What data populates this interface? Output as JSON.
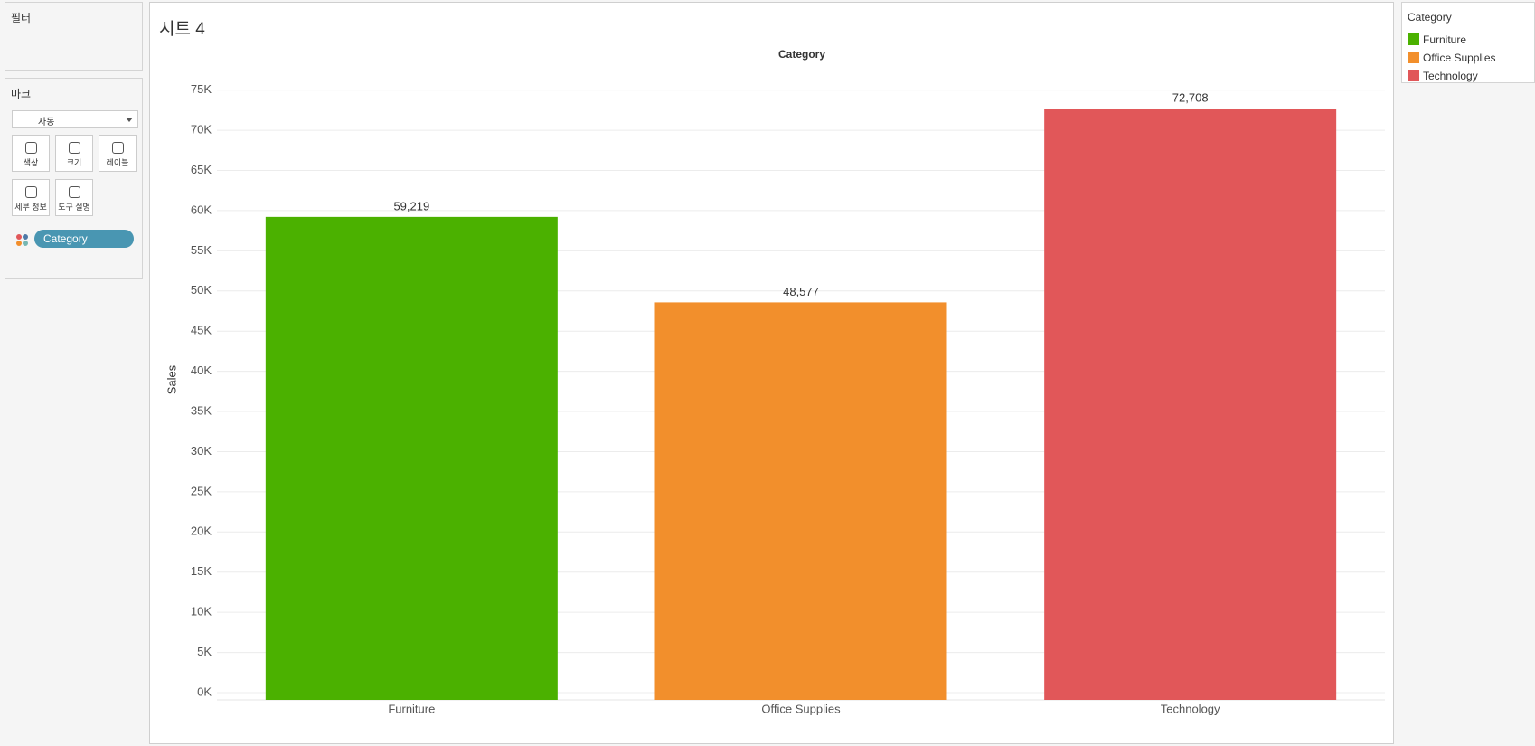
{
  "sheet_title": "시트 4",
  "sidebar": {
    "filters_title": "필터",
    "marks_title": "마크",
    "mark_type": "자동",
    "mark_buttons": [
      "색상",
      "크기",
      "레이블",
      "세부 정보",
      "도구 설명"
    ],
    "color_pill": "Category"
  },
  "legend": {
    "title": "Category"
  },
  "chart_data": {
    "type": "bar",
    "title": "Category",
    "ylabel": "Sales",
    "categories": [
      "Furniture",
      "Office Supplies",
      "Technology"
    ],
    "values": [
      59219,
      48577,
      72708
    ],
    "value_labels": [
      "59,219",
      "48,577",
      "72,708"
    ],
    "colors": [
      "#4bb100",
      "#f28f2c",
      "#e15759"
    ],
    "ylim": [
      0,
      78000
    ],
    "yticks": [
      {
        "value": 0,
        "label": "0K"
      },
      {
        "value": 5000,
        "label": "5K"
      },
      {
        "value": 10000,
        "label": "10K"
      },
      {
        "value": 15000,
        "label": "15K"
      },
      {
        "value": 20000,
        "label": "20K"
      },
      {
        "value": 25000,
        "label": "25K"
      },
      {
        "value": 30000,
        "label": "30K"
      },
      {
        "value": 35000,
        "label": "35K"
      },
      {
        "value": 40000,
        "label": "40K"
      },
      {
        "value": 45000,
        "label": "45K"
      },
      {
        "value": 50000,
        "label": "50K"
      },
      {
        "value": 55000,
        "label": "55K"
      },
      {
        "value": 60000,
        "label": "60K"
      },
      {
        "value": 65000,
        "label": "65K"
      },
      {
        "value": 70000,
        "label": "70K"
      },
      {
        "value": 75000,
        "label": "75K"
      }
    ],
    "grid": true
  }
}
